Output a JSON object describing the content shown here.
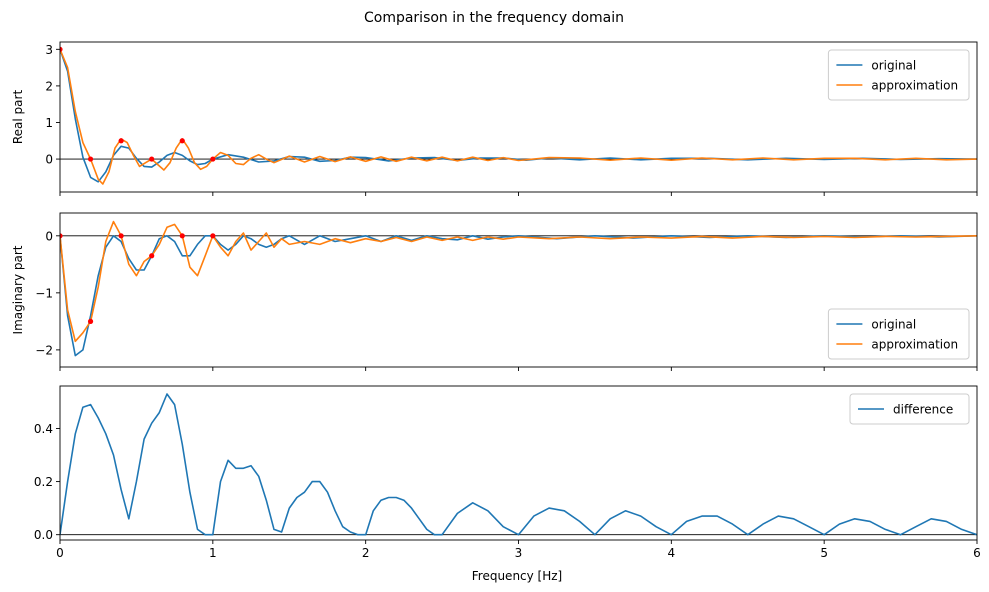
{
  "figure": {
    "title": "Comparison in the frequency domain",
    "xlabel": "Frequency [Hz]"
  },
  "colors": {
    "original": "#1f77b4",
    "approximation": "#ff7f0e",
    "difference": "#1f77b4",
    "samples": "#ff0000",
    "zero_line": "#000000"
  },
  "chart_data": [
    {
      "type": "line",
      "panel": "real",
      "ylabel": "Real part",
      "xlim": [
        0,
        6
      ],
      "ylim": [
        -0.9,
        3.2
      ],
      "yticks": [
        0,
        1,
        2,
        3
      ],
      "ytick_labels": [
        "0",
        "1",
        "2",
        "3"
      ],
      "xticks": [
        0,
        1,
        2,
        3,
        4,
        5,
        6
      ],
      "zero_line": true,
      "legend_location": "upper right",
      "series": [
        {
          "name": "original",
          "color": "#1f77b4",
          "x": [
            0,
            0.05,
            0.1,
            0.15,
            0.2,
            0.25,
            0.3,
            0.35,
            0.4,
            0.45,
            0.5,
            0.55,
            0.6,
            0.65,
            0.7,
            0.75,
            0.8,
            0.85,
            0.9,
            0.95,
            1.0,
            1.1,
            1.2,
            1.3,
            1.4,
            1.5,
            1.6,
            1.7,
            1.8,
            1.9,
            2.0,
            2.15,
            2.3,
            2.45,
            2.6,
            2.75,
            2.9,
            3.05,
            3.2,
            3.4,
            3.6,
            3.8,
            4.0,
            4.25,
            4.5,
            4.75,
            5.0,
            5.25,
            5.5,
            5.75,
            6.0
          ],
          "y": [
            3.0,
            2.4,
            1.1,
            0.05,
            -0.5,
            -0.62,
            -0.35,
            0.1,
            0.35,
            0.3,
            0.02,
            -0.2,
            -0.22,
            -0.08,
            0.1,
            0.18,
            0.1,
            -0.05,
            -0.15,
            -0.12,
            0.0,
            0.12,
            0.05,
            -0.08,
            -0.05,
            0.07,
            0.05,
            -0.06,
            -0.04,
            0.05,
            0.04,
            -0.05,
            0.03,
            0.04,
            -0.04,
            0.03,
            0.03,
            -0.03,
            0.03,
            -0.02,
            0.03,
            -0.02,
            0.02,
            0.02,
            -0.02,
            0.02,
            -0.01,
            0.02,
            -0.01,
            0.01,
            0.0
          ]
        },
        {
          "name": "approximation",
          "color": "#ff7f0e",
          "x": [
            0,
            0.05,
            0.1,
            0.15,
            0.2,
            0.25,
            0.28,
            0.32,
            0.36,
            0.4,
            0.44,
            0.48,
            0.52,
            0.56,
            0.6,
            0.64,
            0.68,
            0.72,
            0.76,
            0.8,
            0.84,
            0.88,
            0.92,
            0.96,
            1.0,
            1.05,
            1.1,
            1.15,
            1.2,
            1.25,
            1.3,
            1.35,
            1.4,
            1.5,
            1.6,
            1.7,
            1.8,
            1.9,
            2.0,
            2.1,
            2.2,
            2.3,
            2.4,
            2.5,
            2.6,
            2.7,
            2.8,
            2.9,
            3.0,
            3.2,
            3.4,
            3.6,
            3.8,
            4.0,
            4.2,
            4.4,
            4.6,
            4.8,
            5.0,
            5.2,
            5.4,
            5.6,
            5.8,
            6.0
          ],
          "y": [
            3.0,
            2.5,
            1.3,
            0.45,
            0.0,
            -0.55,
            -0.68,
            -0.35,
            0.3,
            0.55,
            0.45,
            0.1,
            -0.2,
            -0.1,
            0.0,
            -0.15,
            -0.3,
            -0.1,
            0.3,
            0.55,
            0.3,
            -0.1,
            -0.28,
            -0.2,
            0.0,
            0.18,
            0.1,
            -0.12,
            -0.15,
            0.02,
            0.12,
            0.0,
            -0.1,
            0.08,
            -0.08,
            0.07,
            -0.07,
            0.06,
            -0.06,
            0.06,
            -0.06,
            0.05,
            -0.05,
            0.05,
            -0.05,
            0.05,
            -0.04,
            0.04,
            -0.04,
            0.04,
            0.03,
            -0.03,
            0.03,
            -0.03,
            0.03,
            -0.02,
            0.03,
            -0.02,
            0.02,
            0.02,
            -0.02,
            0.02,
            -0.02,
            0.0
          ]
        },
        {
          "name": "samples",
          "color": "#ff0000",
          "markers_only": true,
          "x": [
            0,
            0.2,
            0.4,
            0.6,
            0.8,
            1.0
          ],
          "y": [
            3.0,
            0.0,
            0.5,
            0.0,
            0.5,
            0.0
          ]
        }
      ]
    },
    {
      "type": "line",
      "panel": "imaginary",
      "ylabel": "Imaginary part",
      "xlim": [
        0,
        6
      ],
      "ylim": [
        -2.3,
        0.4
      ],
      "yticks": [
        -2,
        -1,
        0
      ],
      "ytick_labels": [
        "−2",
        "−1",
        "0"
      ],
      "xticks": [
        0,
        1,
        2,
        3,
        4,
        5,
        6
      ],
      "zero_line": true,
      "legend_location": "lower right",
      "series": [
        {
          "name": "original",
          "color": "#1f77b4",
          "x": [
            0,
            0.05,
            0.1,
            0.15,
            0.2,
            0.25,
            0.3,
            0.35,
            0.4,
            0.45,
            0.5,
            0.55,
            0.6,
            0.65,
            0.7,
            0.75,
            0.8,
            0.85,
            0.9,
            0.95,
            1.0,
            1.05,
            1.1,
            1.15,
            1.2,
            1.25,
            1.3,
            1.35,
            1.4,
            1.45,
            1.5,
            1.6,
            1.7,
            1.8,
            1.9,
            2.0,
            2.1,
            2.2,
            2.3,
            2.4,
            2.5,
            2.6,
            2.7,
            2.8,
            2.9,
            3.0,
            3.25,
            3.5,
            3.75,
            4.0,
            4.25,
            4.5,
            4.75,
            5.0,
            5.25,
            5.5,
            5.75,
            6.0
          ],
          "y": [
            0,
            -1.4,
            -2.1,
            -2.0,
            -1.4,
            -0.7,
            -0.2,
            0.0,
            -0.1,
            -0.4,
            -0.6,
            -0.6,
            -0.35,
            -0.05,
            0.0,
            -0.1,
            -0.35,
            -0.35,
            -0.15,
            0.0,
            0.0,
            -0.15,
            -0.25,
            -0.15,
            0.0,
            -0.05,
            -0.15,
            -0.2,
            -0.15,
            -0.05,
            0.0,
            -0.15,
            0.0,
            -0.1,
            -0.05,
            0.0,
            -0.1,
            0.0,
            -0.08,
            0.0,
            -0.05,
            -0.07,
            0.0,
            -0.06,
            -0.02,
            0.0,
            -0.05,
            0.0,
            -0.04,
            0.0,
            -0.03,
            0.0,
            -0.03,
            0.0,
            -0.02,
            0.0,
            -0.02,
            0.0
          ]
        },
        {
          "name": "approximation",
          "color": "#ff7f0e",
          "x": [
            0,
            0.05,
            0.1,
            0.15,
            0.2,
            0.25,
            0.3,
            0.35,
            0.4,
            0.45,
            0.5,
            0.55,
            0.6,
            0.65,
            0.7,
            0.75,
            0.8,
            0.85,
            0.9,
            0.95,
            1.0,
            1.05,
            1.1,
            1.15,
            1.2,
            1.25,
            1.3,
            1.35,
            1.4,
            1.45,
            1.5,
            1.6,
            1.7,
            1.8,
            1.9,
            2.0,
            2.1,
            2.2,
            2.3,
            2.4,
            2.5,
            2.6,
            2.7,
            2.8,
            2.9,
            3.0,
            3.2,
            3.4,
            3.6,
            3.8,
            4.0,
            4.2,
            4.4,
            4.6,
            4.8,
            5.0,
            5.2,
            5.4,
            5.6,
            5.8,
            6.0
          ],
          "y": [
            0,
            -1.3,
            -1.85,
            -1.7,
            -1.5,
            -0.9,
            -0.1,
            0.25,
            0.0,
            -0.5,
            -0.7,
            -0.45,
            -0.35,
            -0.15,
            0.15,
            0.2,
            0.0,
            -0.55,
            -0.7,
            -0.35,
            0.0,
            -0.2,
            -0.35,
            -0.1,
            0.05,
            -0.25,
            -0.1,
            0.05,
            -0.2,
            -0.05,
            -0.15,
            -0.1,
            -0.15,
            -0.05,
            -0.12,
            -0.05,
            -0.1,
            -0.03,
            -0.1,
            -0.02,
            -0.08,
            -0.02,
            -0.08,
            -0.02,
            -0.06,
            -0.02,
            -0.05,
            -0.02,
            -0.05,
            -0.02,
            -0.04,
            -0.01,
            -0.04,
            -0.01,
            -0.03,
            -0.01,
            -0.03,
            -0.01,
            -0.02,
            -0.01,
            0.0
          ]
        },
        {
          "name": "samples",
          "color": "#ff0000",
          "markers_only": true,
          "x": [
            0,
            0.2,
            0.4,
            0.6,
            0.8,
            1.0
          ],
          "y": [
            0.0,
            -1.5,
            0.0,
            -0.35,
            0.0,
            0.0
          ]
        }
      ]
    },
    {
      "type": "line",
      "panel": "difference",
      "ylabel": "",
      "xlabel": "Frequency [Hz]",
      "xlim": [
        0,
        6
      ],
      "ylim": [
        -0.02,
        0.56
      ],
      "yticks": [
        0.0,
        0.2,
        0.4
      ],
      "ytick_labels": [
        "0.0",
        "0.2",
        "0.4"
      ],
      "xticks": [
        0,
        1,
        2,
        3,
        4,
        5,
        6
      ],
      "xtick_labels": [
        "0",
        "1",
        "2",
        "3",
        "4",
        "5",
        "6"
      ],
      "zero_line": true,
      "legend_location": "upper right",
      "series": [
        {
          "name": "difference",
          "color": "#1f77b4",
          "x": [
            0,
            0.05,
            0.1,
            0.15,
            0.2,
            0.25,
            0.3,
            0.35,
            0.4,
            0.45,
            0.5,
            0.55,
            0.6,
            0.65,
            0.7,
            0.75,
            0.8,
            0.85,
            0.9,
            0.95,
            1.0,
            1.05,
            1.1,
            1.15,
            1.2,
            1.25,
            1.3,
            1.35,
            1.4,
            1.45,
            1.5,
            1.55,
            1.6,
            1.65,
            1.7,
            1.75,
            1.8,
            1.85,
            1.9,
            1.95,
            2.0,
            2.05,
            2.1,
            2.15,
            2.2,
            2.25,
            2.3,
            2.35,
            2.4,
            2.45,
            2.5,
            2.6,
            2.7,
            2.8,
            2.9,
            3.0,
            3.1,
            3.2,
            3.3,
            3.4,
            3.5,
            3.6,
            3.7,
            3.8,
            3.9,
            4.0,
            4.1,
            4.2,
            4.3,
            4.4,
            4.5,
            4.6,
            4.7,
            4.8,
            4.9,
            5.0,
            5.1,
            5.2,
            5.3,
            5.4,
            5.5,
            5.6,
            5.7,
            5.8,
            5.9,
            6.0
          ],
          "y": [
            0.0,
            0.2,
            0.38,
            0.48,
            0.49,
            0.44,
            0.38,
            0.3,
            0.17,
            0.06,
            0.2,
            0.36,
            0.42,
            0.46,
            0.53,
            0.49,
            0.34,
            0.16,
            0.02,
            0.0,
            0.0,
            0.2,
            0.28,
            0.25,
            0.25,
            0.26,
            0.22,
            0.13,
            0.02,
            0.01,
            0.1,
            0.14,
            0.16,
            0.2,
            0.2,
            0.16,
            0.09,
            0.03,
            0.01,
            0.0,
            0.0,
            0.09,
            0.13,
            0.14,
            0.14,
            0.13,
            0.1,
            0.06,
            0.02,
            0.0,
            0.0,
            0.08,
            0.12,
            0.09,
            0.03,
            0.0,
            0.07,
            0.1,
            0.09,
            0.05,
            0.0,
            0.06,
            0.09,
            0.07,
            0.03,
            0.0,
            0.05,
            0.07,
            0.07,
            0.04,
            0.0,
            0.04,
            0.07,
            0.06,
            0.03,
            0.0,
            0.04,
            0.06,
            0.05,
            0.02,
            0.0,
            0.03,
            0.06,
            0.05,
            0.02,
            0.0
          ]
        }
      ]
    }
  ]
}
